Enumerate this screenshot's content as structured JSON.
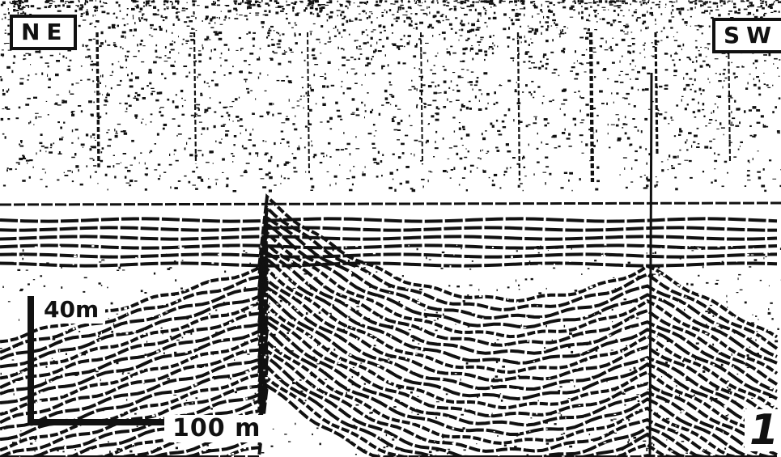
{
  "figure": {
    "label_left": "NE",
    "label_right": "SW",
    "vertical_scale_label": "40m",
    "horizontal_scale_label": "100 m",
    "figure_number": "1"
  },
  "colors": {
    "ink": "#111111",
    "paper": "#ffffff"
  }
}
